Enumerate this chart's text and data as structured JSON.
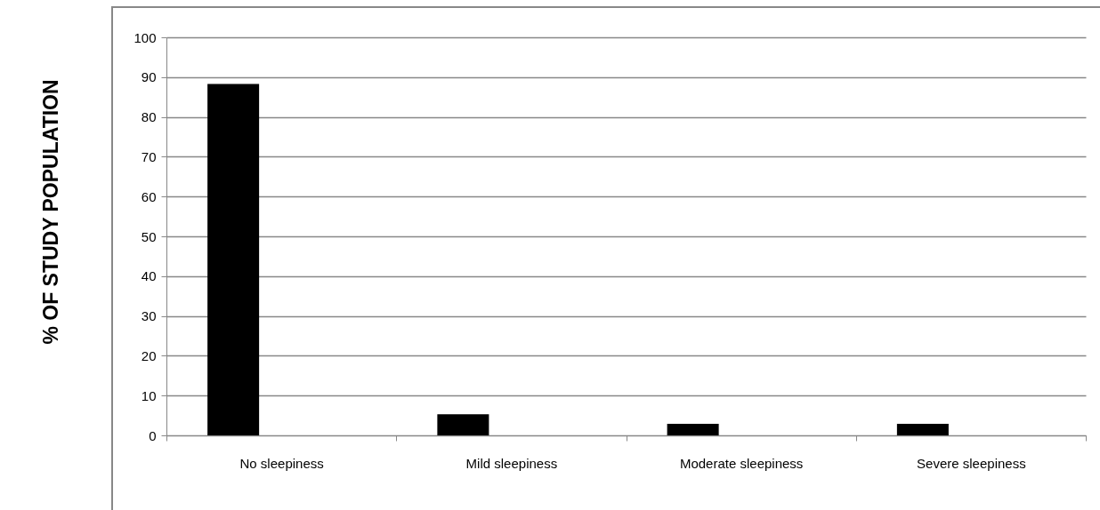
{
  "chart_data": {
    "type": "bar",
    "ylabel": "% OF STUDY POPULATION",
    "categories": [
      "No sleepiness",
      "Mild sleepiness",
      "Moderate  sleepiness",
      "Severe sleepiness"
    ],
    "values": [
      88.3,
      5.3,
      2.9,
      2.9
    ],
    "color": "#000000",
    "ylim": [
      0,
      100
    ],
    "yticks": [
      0,
      10,
      20,
      30,
      40,
      50,
      60,
      70,
      80,
      90,
      100
    ],
    "grid": "y"
  }
}
